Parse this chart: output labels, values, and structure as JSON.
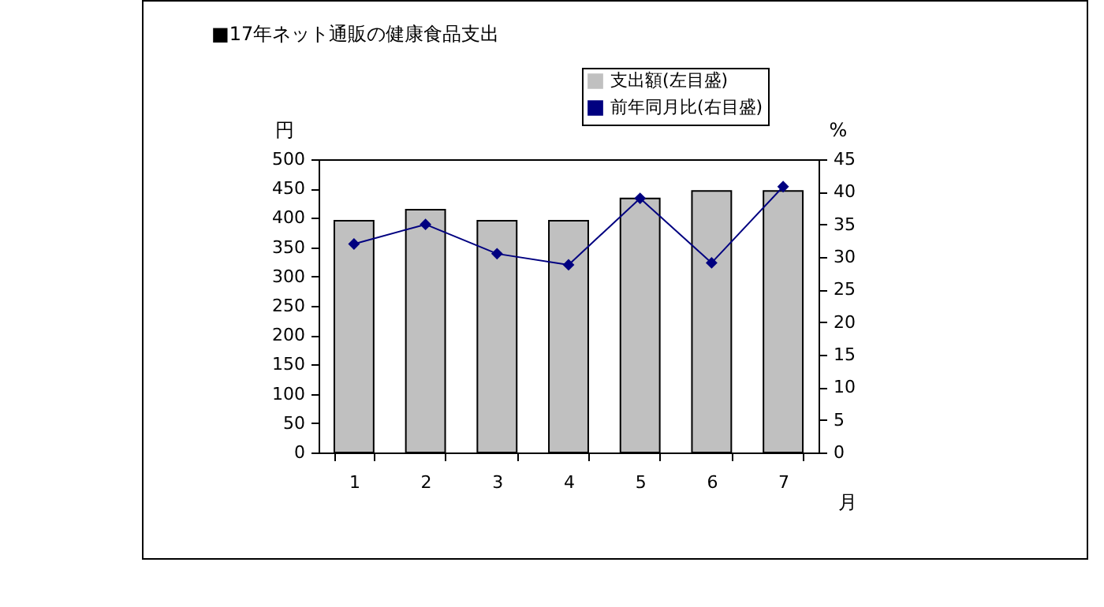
{
  "chart_data": {
    "type": "bar",
    "title": "■17年ネット通販の健康食品支出",
    "xlabel": "月",
    "ylabel": "円",
    "y2label": "%",
    "categories": [
      "1",
      "2",
      "3",
      "4",
      "5",
      "6",
      "7"
    ],
    "series": [
      {
        "name": "支出額(左目盛)",
        "color": "#c0c0c0",
        "values": [
          395,
          414,
          395,
          395,
          433,
          446,
          446
        ]
      },
      {
        "name": "前年同月比(右目盛)",
        "type": "line",
        "axis": "y2",
        "color": "#000080",
        "values": [
          32.0,
          35.0,
          30.5,
          28.8,
          39.0,
          29.1,
          40.8
        ]
      }
    ],
    "ylim": [
      0,
      500
    ],
    "yticks": [
      0,
      50,
      100,
      150,
      200,
      250,
      300,
      350,
      400,
      450,
      500
    ],
    "y2lim": [
      0,
      45
    ],
    "y2ticks": [
      0,
      5,
      10,
      15,
      20,
      25,
      30,
      35,
      40,
      45
    ],
    "marker": "diamond",
    "grid": false,
    "legend": "top right"
  }
}
